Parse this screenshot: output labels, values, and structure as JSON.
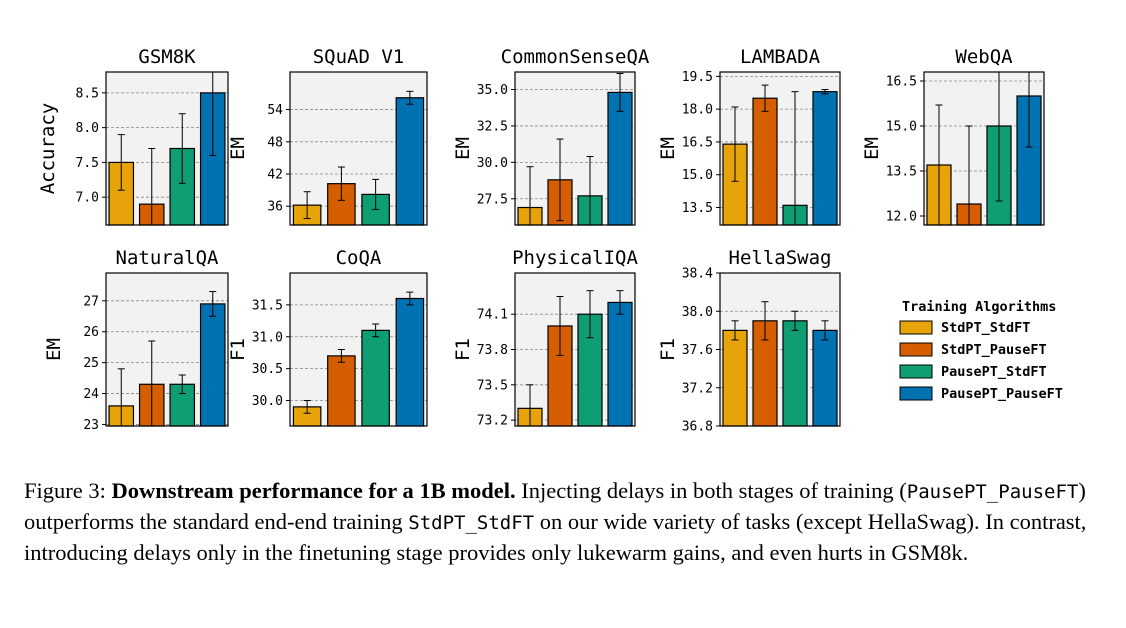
{
  "legend": {
    "title": "Training Algorithms",
    "items": [
      {
        "label": "StdPT_StdFT",
        "color": "#E6A40A"
      },
      {
        "label": "StdPT_PauseFT",
        "color": "#D55E00"
      },
      {
        "label": "PausePT_StdFT",
        "color": "#0F9E73"
      },
      {
        "label": "PausePT_PauseFT",
        "color": "#0072B2"
      }
    ]
  },
  "caption": {
    "figure_label": "Figure 3:",
    "bold_title": "Downstream performance for a 1B model.",
    "text_1": "Injecting delays in both stages of training (",
    "code_1": "PausePT_PauseFT",
    "text_2": ") outperforms the standard end-end training",
    "code_2": "StdPT_StdFT",
    "text_3": "on our wide variety of tasks (except HellaSwag). In contrast, introducing delays only in the finetuning stage provides only lukewarm gains, and even hurts in GSM8k."
  },
  "chart_data": [
    {
      "type": "bar",
      "title": "GSM8K",
      "ylabel": "Accuracy",
      "categories": [
        "StdPT_StdFT",
        "StdPT_PauseFT",
        "PausePT_StdFT",
        "PausePT_PauseFT"
      ],
      "values": [
        7.5,
        6.9,
        7.7,
        8.5
      ],
      "errors": [
        0.4,
        0.8,
        0.5,
        0.9
      ],
      "ylim": [
        6.6,
        8.8
      ],
      "yticks": [
        7.0,
        7.5,
        8.0,
        8.5
      ],
      "tick_labels": [
        "7.0",
        "7.5",
        "8.0",
        "8.5"
      ],
      "grid": true
    },
    {
      "type": "bar",
      "title": "SQuAD V1",
      "ylabel": "EM",
      "categories": [
        "StdPT_StdFT",
        "StdPT_PauseFT",
        "PausePT_StdFT",
        "PausePT_PauseFT"
      ],
      "values": [
        36.2,
        40.2,
        38.2,
        56.2
      ],
      "errors": [
        2.5,
        3.1,
        2.8,
        1.2
      ],
      "ylim": [
        32.5,
        61
      ],
      "yticks": [
        36,
        42,
        48,
        54
      ],
      "tick_labels": [
        "36",
        "42",
        "48",
        "54"
      ],
      "grid": true
    },
    {
      "type": "bar",
      "title": "CommonSenseQA",
      "ylabel": "EM",
      "categories": [
        "StdPT_StdFT",
        "StdPT_PauseFT",
        "PausePT_StdFT",
        "PausePT_PauseFT"
      ],
      "values": [
        26.9,
        28.8,
        27.7,
        34.8
      ],
      "errors": [
        2.8,
        2.8,
        2.7,
        1.3
      ],
      "ylim": [
        25.7,
        36.2
      ],
      "yticks": [
        27.5,
        30.0,
        32.5,
        35.0
      ],
      "tick_labels": [
        "27.5",
        "30.0",
        "32.5",
        "35.0"
      ],
      "grid": true
    },
    {
      "type": "bar",
      "title": "LAMBADA",
      "ylabel": "EM",
      "categories": [
        "StdPT_StdFT",
        "StdPT_PauseFT",
        "PausePT_StdFT",
        "PausePT_PauseFT"
      ],
      "values": [
        16.4,
        18.5,
        13.6,
        18.8
      ],
      "errors": [
        1.7,
        0.6,
        5.2,
        0.1
      ],
      "ylim": [
        12.7,
        19.7
      ],
      "yticks": [
        13.5,
        15.0,
        16.5,
        18.0,
        19.5
      ],
      "tick_labels": [
        "13.5",
        "15.0",
        "16.5",
        "18.0",
        "19.5"
      ],
      "grid": true
    },
    {
      "type": "bar",
      "title": "WebQA",
      "ylabel": "EM",
      "categories": [
        "StdPT_StdFT",
        "StdPT_PauseFT",
        "PausePT_StdFT",
        "PausePT_PauseFT"
      ],
      "values": [
        13.7,
        12.4,
        15.0,
        16.0
      ],
      "errors": [
        2.0,
        2.6,
        2.5,
        1.7
      ],
      "ylim": [
        11.7,
        16.8
      ],
      "yticks": [
        12.0,
        13.5,
        15.0,
        16.5
      ],
      "tick_labels": [
        "12.0",
        "13.5",
        "15.0",
        "16.5"
      ],
      "grid": true
    },
    {
      "type": "bar",
      "title": "NaturalQA",
      "ylabel": "EM",
      "categories": [
        "StdPT_StdFT",
        "StdPT_PauseFT",
        "PausePT_StdFT",
        "PausePT_PauseFT"
      ],
      "values": [
        23.6,
        24.3,
        24.3,
        26.9
      ],
      "errors": [
        1.2,
        1.4,
        0.3,
        0.4
      ],
      "ylim": [
        22.95,
        27.9
      ],
      "yticks": [
        23,
        24,
        25,
        26,
        27
      ],
      "tick_labels": [
        "23",
        "24",
        "25",
        "26",
        "27"
      ],
      "grid": true
    },
    {
      "type": "bar",
      "title": "CoQA",
      "ylabel": "F1",
      "categories": [
        "StdPT_StdFT",
        "StdPT_PauseFT",
        "PausePT_StdFT",
        "PausePT_PauseFT"
      ],
      "values": [
        29.9,
        30.7,
        31.1,
        31.6
      ],
      "errors": [
        0.1,
        0.1,
        0.1,
        0.1
      ],
      "ylim": [
        29.6,
        32.0
      ],
      "yticks": [
        30.0,
        30.5,
        31.0,
        31.5
      ],
      "tick_labels": [
        "30.0",
        "30.5",
        "31.0",
        "31.5"
      ],
      "grid": true
    },
    {
      "type": "bar",
      "title": "PhysicalIQA",
      "ylabel": "F1",
      "categories": [
        "StdPT_StdFT",
        "StdPT_PauseFT",
        "PausePT_StdFT",
        "PausePT_PauseFT"
      ],
      "values": [
        73.3,
        74.0,
        74.1,
        74.2
      ],
      "errors": [
        0.2,
        0.25,
        0.2,
        0.1
      ],
      "ylim": [
        73.15,
        74.45
      ],
      "yticks": [
        73.2,
        73.5,
        73.8,
        74.1
      ],
      "tick_labels": [
        "73.2",
        "73.5",
        "73.8",
        "74.1"
      ],
      "grid": true
    },
    {
      "type": "bar",
      "title": "HellaSwag",
      "ylabel": "F1",
      "categories": [
        "StdPT_StdFT",
        "StdPT_PauseFT",
        "PausePT_StdFT",
        "PausePT_PauseFT"
      ],
      "values": [
        37.8,
        37.9,
        37.9,
        37.8
      ],
      "errors": [
        0.1,
        0.2,
        0.1,
        0.1
      ],
      "ylim": [
        36.8,
        38.4
      ],
      "yticks": [
        36.8,
        37.2,
        37.6,
        38.0,
        38.4
      ],
      "tick_labels": [
        "36.8",
        "37.2",
        "37.6",
        "38.0",
        "38.4"
      ],
      "grid": true
    }
  ]
}
